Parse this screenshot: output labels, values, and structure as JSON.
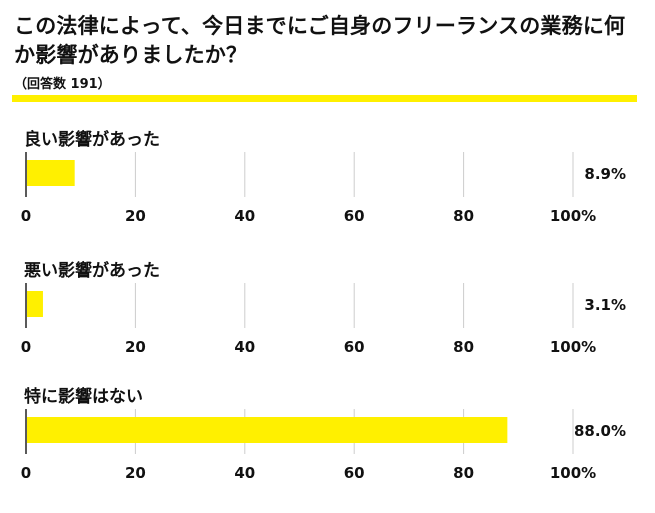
{
  "title": "この法律によって、今日までにご自身のフリーランスの業務に何か影響がありましたか？",
  "note": "（回答数 191）",
  "colors": {
    "bar": "#FFF000",
    "rule": "#FFF000",
    "grid": "#CCCCCC",
    "axis": "#222222"
  },
  "chart_data": [
    {
      "type": "bar",
      "orientation": "horizontal",
      "title": "良い影響があった",
      "categories": [
        "良い影響があった"
      ],
      "values": [
        8.9
      ],
      "value_labels": [
        "8.9%"
      ],
      "xlim": [
        0,
        100
      ],
      "xticks": [
        0,
        20,
        40,
        60,
        80,
        100
      ],
      "xtick_labels": [
        "0",
        "20",
        "40",
        "60",
        "80",
        "100%"
      ],
      "grid": true
    },
    {
      "type": "bar",
      "orientation": "horizontal",
      "title": "悪い影響があった",
      "categories": [
        "悪い影響があった"
      ],
      "values": [
        3.1
      ],
      "value_labels": [
        "3.1%"
      ],
      "xlim": [
        0,
        100
      ],
      "xticks": [
        0,
        20,
        40,
        60,
        80,
        100
      ],
      "xtick_labels": [
        "0",
        "20",
        "40",
        "60",
        "80",
        "100%"
      ],
      "grid": true
    },
    {
      "type": "bar",
      "orientation": "horizontal",
      "title": "特に影響はない",
      "categories": [
        "特に影響はない"
      ],
      "values": [
        88.0
      ],
      "value_labels": [
        "88.0%"
      ],
      "xlim": [
        0,
        100
      ],
      "xticks": [
        0,
        20,
        40,
        60,
        80,
        100
      ],
      "xtick_labels": [
        "0",
        "20",
        "40",
        "60",
        "80",
        "100%"
      ],
      "grid": true
    }
  ]
}
